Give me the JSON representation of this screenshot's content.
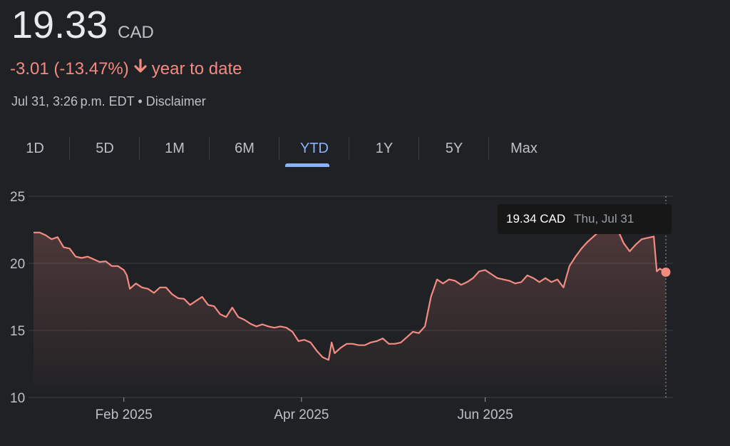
{
  "header": {
    "price": "19.33",
    "currency": "CAD",
    "change": "-3.01 (-13.47%)",
    "change_period": "year to date",
    "timestamp": "Jul 31, 3:26 p.m. EDT",
    "separator": "•",
    "disclaimer": "Disclaimer",
    "down_color": "#f28b82"
  },
  "tabs": [
    {
      "label": "1D",
      "active": false
    },
    {
      "label": "5D",
      "active": false
    },
    {
      "label": "1M",
      "active": false
    },
    {
      "label": "6M",
      "active": false
    },
    {
      "label": "YTD",
      "active": true
    },
    {
      "label": "1Y",
      "active": false
    },
    {
      "label": "5Y",
      "active": false
    },
    {
      "label": "Max",
      "active": false
    }
  ],
  "tooltip": {
    "value": "19.34 CAD",
    "date": "Thu, Jul 31"
  },
  "chart_data": {
    "type": "area",
    "line_color": "#f28b82",
    "ylim": [
      10,
      25
    ],
    "yticks": [
      10,
      15,
      20,
      25
    ],
    "xlim": [
      "2025-01-02",
      "2025-07-31"
    ],
    "xticks": [
      {
        "label": "Feb 2025",
        "date": "2025-02-01"
      },
      {
        "label": "Apr 2025",
        "date": "2025-04-01"
      },
      {
        "label": "Jun 2025",
        "date": "2025-06-01"
      }
    ],
    "grid": true,
    "points": [
      [
        "2025-01-02",
        22.3
      ],
      [
        "2025-01-04",
        22.3
      ],
      [
        "2025-01-06",
        22.1
      ],
      [
        "2025-01-08",
        21.8
      ],
      [
        "2025-01-10",
        21.95
      ],
      [
        "2025-01-12",
        21.2
      ],
      [
        "2025-01-14",
        21.1
      ],
      [
        "2025-01-16",
        20.5
      ],
      [
        "2025-01-18",
        20.4
      ],
      [
        "2025-01-20",
        20.5
      ],
      [
        "2025-01-22",
        20.3
      ],
      [
        "2025-01-24",
        20.1
      ],
      [
        "2025-01-26",
        20.15
      ],
      [
        "2025-01-28",
        19.8
      ],
      [
        "2025-01-30",
        19.8
      ],
      [
        "2025-02-01",
        19.5
      ],
      [
        "2025-02-02",
        19.1
      ],
      [
        "2025-02-03",
        18.1
      ],
      [
        "2025-02-05",
        18.5
      ],
      [
        "2025-02-07",
        18.2
      ],
      [
        "2025-02-09",
        18.1
      ],
      [
        "2025-02-11",
        17.8
      ],
      [
        "2025-02-13",
        18.2
      ],
      [
        "2025-02-15",
        18.2
      ],
      [
        "2025-02-17",
        17.7
      ],
      [
        "2025-02-19",
        17.4
      ],
      [
        "2025-02-21",
        17.35
      ],
      [
        "2025-02-23",
        16.9
      ],
      [
        "2025-02-25",
        17.2
      ],
      [
        "2025-02-27",
        17.5
      ],
      [
        "2025-03-01",
        16.9
      ],
      [
        "2025-03-03",
        16.8
      ],
      [
        "2025-03-05",
        16.2
      ],
      [
        "2025-03-07",
        16.0
      ],
      [
        "2025-03-09",
        16.7
      ],
      [
        "2025-03-11",
        16.0
      ],
      [
        "2025-03-13",
        15.8
      ],
      [
        "2025-03-15",
        15.5
      ],
      [
        "2025-03-17",
        15.3
      ],
      [
        "2025-03-19",
        15.45
      ],
      [
        "2025-03-21",
        15.3
      ],
      [
        "2025-03-23",
        15.2
      ],
      [
        "2025-03-25",
        15.3
      ],
      [
        "2025-03-27",
        15.2
      ],
      [
        "2025-03-29",
        14.9
      ],
      [
        "2025-03-31",
        14.2
      ],
      [
        "2025-04-02",
        14.3
      ],
      [
        "2025-04-04",
        14.1
      ],
      [
        "2025-04-06",
        13.5
      ],
      [
        "2025-04-08",
        13.0
      ],
      [
        "2025-04-10",
        12.8
      ],
      [
        "2025-04-11",
        14.1
      ],
      [
        "2025-04-12",
        13.3
      ],
      [
        "2025-04-14",
        13.7
      ],
      [
        "2025-04-16",
        14.0
      ],
      [
        "2025-04-18",
        14.0
      ],
      [
        "2025-04-20",
        13.9
      ],
      [
        "2025-04-22",
        13.9
      ],
      [
        "2025-04-24",
        14.1
      ],
      [
        "2025-04-26",
        14.2
      ],
      [
        "2025-04-28",
        14.4
      ],
      [
        "2025-04-30",
        14.0
      ],
      [
        "2025-05-02",
        14.0
      ],
      [
        "2025-05-04",
        14.1
      ],
      [
        "2025-05-06",
        14.5
      ],
      [
        "2025-05-08",
        14.9
      ],
      [
        "2025-05-10",
        14.8
      ],
      [
        "2025-05-12",
        15.3
      ],
      [
        "2025-05-14",
        17.5
      ],
      [
        "2025-05-16",
        18.8
      ],
      [
        "2025-05-18",
        18.5
      ],
      [
        "2025-05-20",
        18.8
      ],
      [
        "2025-05-22",
        18.7
      ],
      [
        "2025-05-24",
        18.4
      ],
      [
        "2025-05-26",
        18.6
      ],
      [
        "2025-05-28",
        18.9
      ],
      [
        "2025-05-30",
        19.4
      ],
      [
        "2025-06-01",
        19.5
      ],
      [
        "2025-06-03",
        19.2
      ],
      [
        "2025-06-05",
        18.9
      ],
      [
        "2025-06-07",
        18.8
      ],
      [
        "2025-06-09",
        18.7
      ],
      [
        "2025-06-11",
        18.5
      ],
      [
        "2025-06-13",
        18.6
      ],
      [
        "2025-06-15",
        19.1
      ],
      [
        "2025-06-17",
        18.9
      ],
      [
        "2025-06-19",
        18.6
      ],
      [
        "2025-06-21",
        18.9
      ],
      [
        "2025-06-23",
        18.6
      ],
      [
        "2025-06-25",
        18.8
      ],
      [
        "2025-06-27",
        18.2
      ],
      [
        "2025-06-29",
        19.8
      ],
      [
        "2025-07-01",
        20.5
      ],
      [
        "2025-07-03",
        21.1
      ],
      [
        "2025-07-05",
        21.6
      ],
      [
        "2025-07-07",
        22.0
      ],
      [
        "2025-07-09",
        22.4
      ],
      [
        "2025-07-11",
        22.4
      ],
      [
        "2025-07-13",
        22.6
      ],
      [
        "2025-07-15",
        22.5
      ],
      [
        "2025-07-17",
        21.5
      ],
      [
        "2025-07-19",
        20.9
      ],
      [
        "2025-07-21",
        21.4
      ],
      [
        "2025-07-23",
        21.8
      ],
      [
        "2025-07-25",
        21.9
      ],
      [
        "2025-07-27",
        22.0
      ],
      [
        "2025-07-28",
        19.4
      ],
      [
        "2025-07-29",
        19.6
      ],
      [
        "2025-07-31",
        19.34
      ]
    ]
  }
}
